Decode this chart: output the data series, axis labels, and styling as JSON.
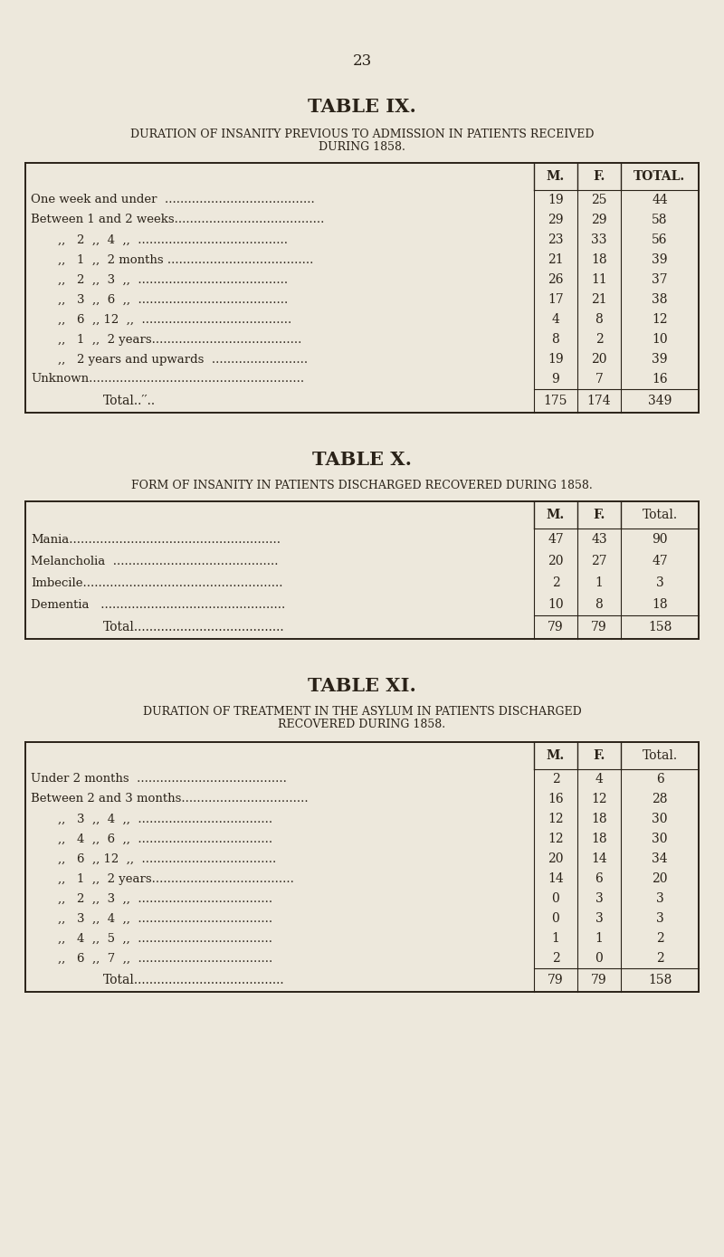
{
  "page_number": "23",
  "bg_color": "#ede8dc",
  "text_color": "#2a2218",
  "table9": {
    "title": "TABLE IX.",
    "subtitle1": "DURATION OF INSANITY PREVIOUS TO ADMISSION IN PATIENTS RECEIVED",
    "subtitle2": "DURING 1858.",
    "col_headers": [
      "M.",
      "F.",
      "TOTAL."
    ],
    "col_header_bold": [
      true,
      true,
      true
    ],
    "rows": [
      {
        "label": "One week and under  .......................................",
        "indent": false,
        "m": "19",
        "f": "25",
        "total": "44"
      },
      {
        "label": "Between 1 and 2 weeks.......................................",
        "indent": false,
        "m": "29",
        "f": "29",
        "total": "58"
      },
      {
        "label": ",,   2  ,,  4  ,,  .......................................",
        "indent": true,
        "m": "23",
        "f": "33",
        "total": "56"
      },
      {
        "label": ",,   1  ,,  2 months ......................................",
        "indent": true,
        "m": "21",
        "f": "18",
        "total": "39"
      },
      {
        "label": ",,   2  ,,  3  ,,  .......................................",
        "indent": true,
        "m": "26",
        "f": "11",
        "total": "37"
      },
      {
        "label": ",,   3  ,,  6  ,,  .......................................",
        "indent": true,
        "m": "17",
        "f": "21",
        "total": "38"
      },
      {
        "label": ",,   6  ,, 12  ,,  .......................................",
        "indent": true,
        "m": "4",
        "f": "8",
        "total": "12"
      },
      {
        "label": ",,   1  ,,  2 years.......................................",
        "indent": true,
        "m": "8",
        "f": "2",
        "total": "10"
      },
      {
        "label": ",,   2 years and upwards  .........................",
        "indent": true,
        "m": "19",
        "f": "20",
        "total": "39"
      },
      {
        "label": "Unknown........................................................",
        "indent": false,
        "m": "9",
        "f": "7",
        "total": "16"
      }
    ],
    "total_label": "Total..′′..",
    "total_m": "175",
    "total_f": "174",
    "total_total": "349"
  },
  "table10": {
    "title": "TABLE X.",
    "subtitle1": "FORM OF INSANITY IN PATIENTS DISCHARGED RECOVERED DURING 1858.",
    "subtitle2": null,
    "col_headers": [
      "M.",
      "F.",
      "Total."
    ],
    "col_header_bold": [
      true,
      true,
      false
    ],
    "rows": [
      {
        "label": "Mania.......................................................",
        "indent": false,
        "m": "47",
        "f": "43",
        "total": "90"
      },
      {
        "label": "Melancholia  ...........................................",
        "indent": false,
        "m": "20",
        "f": "27",
        "total": "47"
      },
      {
        "label": "Imbecile....................................................",
        "indent": false,
        "m": "2",
        "f": "1",
        "total": "3"
      },
      {
        "label": "Dementia   ................................................",
        "indent": false,
        "m": "10",
        "f": "8",
        "total": "18"
      }
    ],
    "total_label": "Total.......................................",
    "total_m": "79",
    "total_f": "79",
    "total_total": "158"
  },
  "table11": {
    "title": "TABLE XI.",
    "subtitle1": "DURATION OF TREATMENT IN THE ASYLUM IN PATIENTS DISCHARGED",
    "subtitle2": "RECOVERED DURING 1858.",
    "col_headers": [
      "M.",
      "F.",
      "Total."
    ],
    "col_header_bold": [
      true,
      true,
      false
    ],
    "rows": [
      {
        "label": "Under 2 months  .......................................",
        "indent": false,
        "m": "2",
        "f": "4",
        "total": "6"
      },
      {
        "label": "Between 2 and 3 months.................................",
        "indent": false,
        "m": "16",
        "f": "12",
        "total": "28"
      },
      {
        "label": ",,   3  ,,  4  ,,  ...................................",
        "indent": true,
        "m": "12",
        "f": "18",
        "total": "30"
      },
      {
        "label": ",,   4  ,,  6  ,,  ...................................",
        "indent": true,
        "m": "12",
        "f": "18",
        "total": "30"
      },
      {
        "label": ",,   6  ,, 12  ,,  ...................................",
        "indent": true,
        "m": "20",
        "f": "14",
        "total": "34"
      },
      {
        "label": ",,   1  ,,  2 years.....................................",
        "indent": true,
        "m": "14",
        "f": "6",
        "total": "20"
      },
      {
        "label": ",,   2  ,,  3  ,,  ...................................",
        "indent": true,
        "m": "0",
        "f": "3",
        "total": "3"
      },
      {
        "label": ",,   3  ,,  4  ,,  ...................................",
        "indent": true,
        "m": "0",
        "f": "3",
        "total": "3"
      },
      {
        "label": ",,   4  ,,  5  ,,  ...................................",
        "indent": true,
        "m": "1",
        "f": "1",
        "total": "2"
      },
      {
        "label": ",,   6  ,,  7  ,,  ...................................",
        "indent": true,
        "m": "2",
        "f": "0",
        "total": "2"
      }
    ],
    "total_label": "Total.......................................",
    "total_m": "79",
    "total_f": "79",
    "total_total": "158"
  }
}
